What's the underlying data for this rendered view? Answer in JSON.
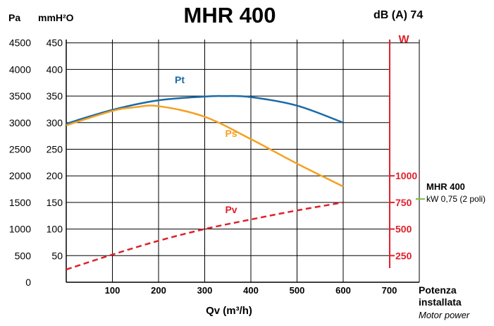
{
  "chart_data": {
    "type": "line",
    "title": "MHR 400",
    "noise_label": "dB (A) 74",
    "xlabel": "Qv (m³/h)",
    "x_ticks": [
      "100",
      "200",
      "300",
      "400",
      "500",
      "600",
      "700"
    ],
    "xlim": [
      0,
      700
    ],
    "y_left_outer_unit": "Pa",
    "y_left_inner_unit": "mmH²O",
    "y_pa_ticks": [
      "0",
      "500",
      "1000",
      "1500",
      "2000",
      "2500",
      "3000",
      "3500",
      "4000",
      "4500"
    ],
    "y_mm_ticks": [
      "50",
      "100",
      "150",
      "200",
      "250",
      "300",
      "350",
      "400",
      "450"
    ],
    "ylim_mm": [
      0,
      450
    ],
    "y_right_unit": "W",
    "y_right_ticks": [
      "250",
      "500",
      "750",
      "1000"
    ],
    "motor": {
      "model": "MHR 400",
      "spec": "kW 0,75 (2 poli)",
      "power_label_1": "Potenza",
      "power_label_2": "installata",
      "power_label_en": "Motor power",
      "color": "#7ac143"
    },
    "series": [
      {
        "name": "Pt",
        "color": "#1a6aa8",
        "style": "solid",
        "x": [
          0,
          100,
          200,
          300,
          340,
          400,
          500,
          600
        ],
        "y": [
          298,
          324,
          342,
          349,
          350,
          348,
          332,
          300
        ]
      },
      {
        "name": "Ps",
        "color": "#f5a020",
        "style": "solid",
        "x": [
          0,
          100,
          150,
          200,
          300,
          400,
          500,
          600
        ],
        "y": [
          295,
          322,
          329,
          331,
          311,
          269,
          223,
          180
        ]
      },
      {
        "name": "Pv",
        "color": "#e0202a",
        "style": "dashed",
        "x": [
          0,
          100,
          200,
          300,
          400,
          500,
          600
        ],
        "y": [
          24,
          52,
          78,
          100,
          118,
          135,
          150
        ]
      }
    ],
    "grid": true
  }
}
